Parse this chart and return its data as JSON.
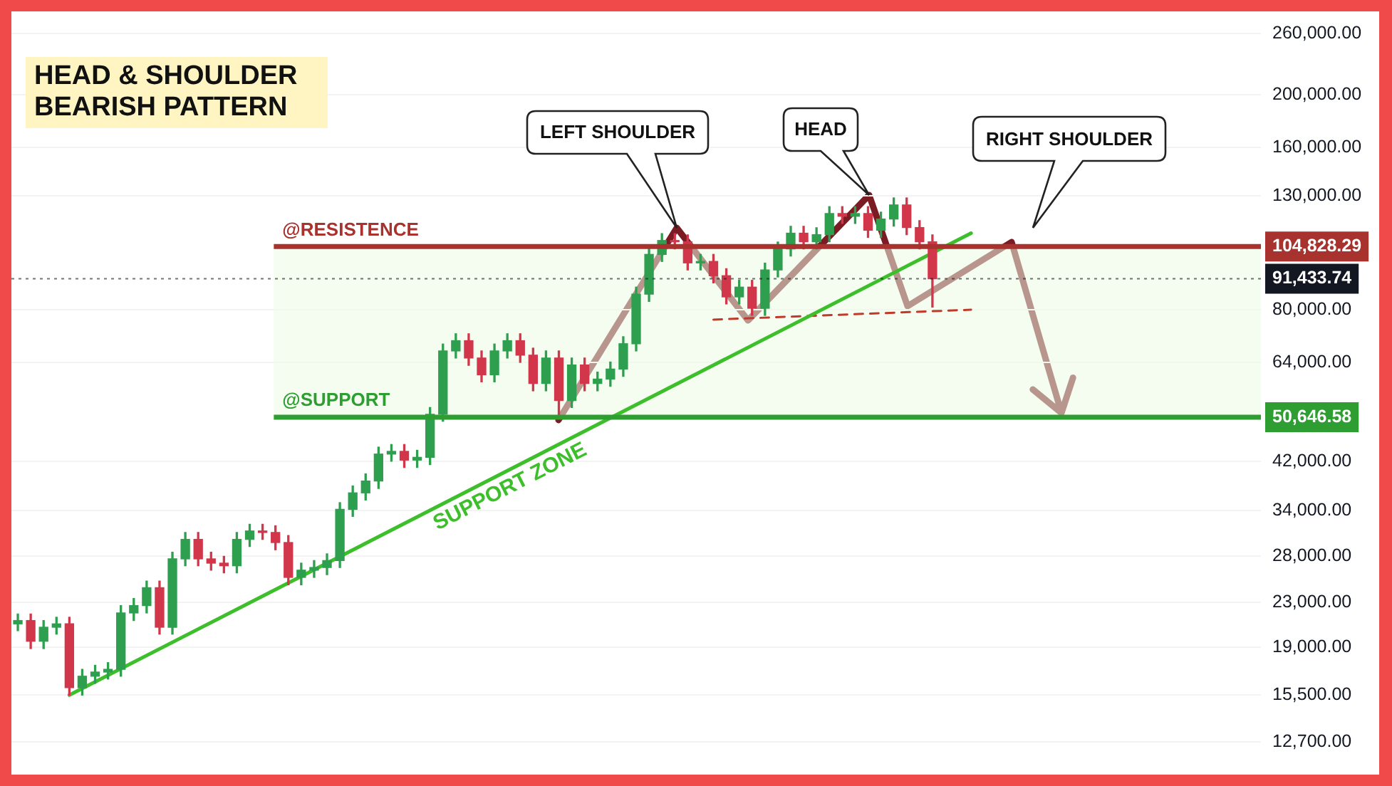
{
  "chart_data": {
    "type": "candlestick",
    "title": "HEAD & SHOULDER BEARISH PATTERN",
    "categories": [
      null,
      null,
      null,
      null,
      null,
      null,
      null,
      null,
      null,
      null,
      null,
      null,
      null,
      null,
      null,
      null,
      null,
      null,
      null,
      null,
      null,
      null,
      null,
      null,
      null,
      null,
      null,
      null,
      null,
      null,
      null,
      null,
      null,
      null,
      null,
      null,
      null,
      null,
      null,
      null,
      null,
      null,
      null,
      null,
      null,
      null,
      null,
      null,
      null,
      null,
      null,
      null,
      null,
      null,
      null,
      null,
      null,
      null,
      null,
      null,
      null,
      null,
      null,
      null,
      null,
      null,
      null,
      null,
      null,
      null,
      null,
      null,
      null,
      null,
      null,
      null,
      null,
      null,
      null,
      null,
      null,
      null,
      null,
      null,
      null,
      null,
      null,
      null,
      null,
      null,
      null,
      null,
      null,
      null,
      null,
      null,
      null
    ],
    "ohlc": [
      [
        21000,
        21900,
        20400,
        21300
      ],
      [
        21300,
        21900,
        18900,
        19500
      ],
      [
        19500,
        21300,
        18900,
        20700
      ],
      [
        20700,
        21600,
        20100,
        21000
      ],
      [
        21000,
        21600,
        15500,
        16000
      ],
      [
        16000,
        17300,
        15500,
        16800
      ],
      [
        16800,
        17600,
        16300,
        17100
      ],
      [
        17100,
        17800,
        16600,
        17300
      ],
      [
        17300,
        22700,
        16800,
        22000
      ],
      [
        22000,
        23400,
        21300,
        22700
      ],
      [
        22700,
        25200,
        22000,
        24500
      ],
      [
        24500,
        25200,
        20100,
        20700
      ],
      [
        20700,
        28500,
        20100,
        27700
      ],
      [
        27700,
        31000,
        26900,
        30100
      ],
      [
        30100,
        31000,
        26900,
        27700
      ],
      [
        27700,
        28500,
        26400,
        27200
      ],
      [
        27200,
        28000,
        26100,
        26900
      ],
      [
        26900,
        31000,
        26100,
        30100
      ],
      [
        30100,
        32100,
        29200,
        31200
      ],
      [
        31200,
        32100,
        30100,
        31000
      ],
      [
        31000,
        31900,
        28800,
        29700
      ],
      [
        29700,
        30600,
        24800,
        25600
      ],
      [
        25600,
        27200,
        24800,
        26400
      ],
      [
        26400,
        27500,
        25600,
        26700
      ],
      [
        26700,
        28300,
        25900,
        27500
      ],
      [
        27500,
        35200,
        26700,
        34200
      ],
      [
        34200,
        37800,
        33200,
        36700
      ],
      [
        36700,
        39800,
        35600,
        38600
      ],
      [
        38600,
        44600,
        37400,
        43300
      ],
      [
        43300,
        45100,
        42000,
        43800
      ],
      [
        43800,
        45100,
        40900,
        42200
      ],
      [
        42200,
        44000,
        40900,
        42700
      ],
      [
        42700,
        52800,
        41400,
        51300
      ],
      [
        51300,
        69200,
        49800,
        67200
      ],
      [
        67200,
        72300,
        65200,
        70200
      ],
      [
        70200,
        72300,
        63200,
        65200
      ],
      [
        65200,
        67200,
        58900,
        60700
      ],
      [
        60700,
        69200,
        58900,
        67200
      ],
      [
        67200,
        72300,
        65200,
        70200
      ],
      [
        70200,
        72300,
        64000,
        66000
      ],
      [
        66000,
        68000,
        56700,
        58500
      ],
      [
        58500,
        67200,
        56700,
        65200
      ],
      [
        65200,
        67200,
        50700,
        54400
      ],
      [
        54400,
        65200,
        52800,
        63300
      ],
      [
        63300,
        65200,
        56700,
        58500
      ],
      [
        58500,
        61400,
        56700,
        59600
      ],
      [
        59600,
        64100,
        57800,
        62200
      ],
      [
        62200,
        71400,
        60300,
        69300
      ],
      [
        69300,
        88200,
        67200,
        85600
      ],
      [
        85600,
        104400,
        83000,
        101400
      ],
      [
        101400,
        110800,
        98400,
        107600
      ],
      [
        107600,
        110800,
        103800,
        107000
      ],
      [
        107000,
        110200,
        94900,
        97800
      ],
      [
        97800,
        101400,
        94900,
        98400
      ],
      [
        98400,
        101400,
        89800,
        92600
      ],
      [
        92600,
        95400,
        82100,
        84600
      ],
      [
        84600,
        90800,
        82100,
        88200
      ],
      [
        88200,
        90800,
        78200,
        80600
      ],
      [
        80600,
        97700,
        78200,
        94900
      ],
      [
        94900,
        106900,
        92100,
        103800
      ],
      [
        103800,
        114300,
        100700,
        111000
      ],
      [
        111000,
        114300,
        103800,
        107000
      ],
      [
        107000,
        113600,
        103800,
        110300
      ],
      [
        110300,
        124300,
        107000,
        120700
      ],
      [
        120700,
        124300,
        115700,
        119300
      ],
      [
        119300,
        124300,
        115700,
        120700
      ],
      [
        120700,
        124300,
        109000,
        112400
      ],
      [
        112400,
        121400,
        109000,
        117900
      ],
      [
        117900,
        129000,
        114400,
        125200
      ],
      [
        125200,
        129000,
        110300,
        113700
      ],
      [
        113700,
        117100,
        103800,
        107000
      ],
      [
        107000,
        110200,
        81000,
        91400
      ],
      null,
      null,
      null,
      null,
      null,
      null,
      null,
      null,
      null,
      null,
      null,
      null,
      null,
      null,
      null,
      null,
      null,
      null,
      null,
      null,
      null,
      null,
      null,
      null,
      null
    ],
    "colors": [
      "#2e9e4f",
      "#d1364a",
      "#2e9e4f",
      "#2e9e4f",
      "#d1364a",
      "#2e9e4f",
      "#2e9e4f",
      "#2e9e4f",
      "#2e9e4f",
      "#2e9e4f",
      "#2e9e4f",
      "#d1364a",
      "#2e9e4f",
      "#2e9e4f",
      "#d1364a",
      "#d1364a",
      "#d1364a",
      "#2e9e4f",
      "#2e9e4f",
      "#d1364a",
      "#d1364a",
      "#d1364a",
      "#2e9e4f",
      "#2e9e4f",
      "#2e9e4f",
      "#2e9e4f",
      "#2e9e4f",
      "#2e9e4f",
      "#2e9e4f",
      "#2e9e4f",
      "#d1364a",
      "#2e9e4f",
      "#2e9e4f",
      "#2e9e4f",
      "#2e9e4f",
      "#d1364a",
      "#d1364a",
      "#2e9e4f",
      "#2e9e4f",
      "#d1364a",
      "#d1364a",
      "#2e9e4f",
      "#d1364a",
      "#2e9e4f",
      "#d1364a",
      "#2e9e4f",
      "#2e9e4f",
      "#2e9e4f",
      "#2e9e4f",
      "#2e9e4f",
      "#2e9e4f",
      "#d1364a",
      "#d1364a",
      "#2e9e4f",
      "#d1364a",
      "#d1364a",
      "#2e9e4f",
      "#d1364a",
      "#2e9e4f",
      "#2e9e4f",
      "#2e9e4f",
      "#d1364a",
      "#2e9e4f",
      "#2e9e4f",
      "#d1364a",
      "#2e9e4f",
      "#d1364a",
      "#2e9e4f",
      "#2e9e4f",
      "#d1364a",
      "#d1364a",
      "#d1364a",
      null,
      null,
      null,
      null,
      null,
      null,
      null,
      null,
      null,
      null,
      null,
      null,
      null,
      null,
      null,
      null,
      null,
      null,
      null,
      null,
      null,
      null,
      null,
      null,
      null
    ],
    "series": [
      {
        "type": "line",
        "color": "#3cbf2a",
        "line_style": "solid",
        "values": [
          null,
          null,
          null,
          null,
          15500,
          null,
          null,
          null,
          null,
          null,
          null,
          null,
          null,
          null,
          null,
          null,
          null,
          null,
          null,
          null,
          null,
          null,
          null,
          null,
          null,
          null,
          null,
          null,
          null,
          null,
          null,
          null,
          null,
          null,
          null,
          null,
          null,
          null,
          null,
          null,
          null,
          null,
          null,
          null,
          null,
          null,
          null,
          null,
          null,
          null,
          null,
          null,
          null,
          null,
          null,
          null,
          null,
          null,
          null,
          null,
          null,
          null,
          null,
          null,
          null,
          null,
          null,
          null,
          null,
          null,
          null,
          null,
          null,
          null,
          111000,
          null,
          null,
          null,
          null,
          null,
          null,
          null,
          null,
          null,
          null,
          null,
          null,
          null,
          null,
          null,
          null,
          null,
          null,
          null,
          null,
          null,
          null
        ]
      },
      {
        "type": "line",
        "color": "#c0392b",
        "line_style": "dashed",
        "values": [
          null,
          null,
          null,
          null,
          null,
          null,
          null,
          null,
          null,
          null,
          null,
          null,
          null,
          null,
          null,
          null,
          null,
          null,
          null,
          null,
          null,
          null,
          null,
          null,
          null,
          null,
          null,
          null,
          null,
          null,
          null,
          null,
          null,
          null,
          null,
          null,
          null,
          null,
          null,
          null,
          null,
          null,
          null,
          null,
          null,
          null,
          null,
          null,
          null,
          null,
          null,
          null,
          null,
          null,
          76800,
          null,
          null,
          null,
          null,
          null,
          null,
          null,
          null,
          null,
          null,
          null,
          null,
          null,
          null,
          null,
          null,
          null,
          null,
          null,
          80100,
          null,
          null,
          null,
          null,
          null,
          null,
          null,
          null,
          null,
          null,
          null,
          null,
          null,
          null,
          null,
          null,
          null,
          null,
          null,
          null,
          null,
          null
        ]
      }
    ],
    "log": "y",
    "ylim": [
      12700,
      260000
    ],
    "yticks": [
      {
        "value": 12700,
        "label": "12,700.00"
      },
      {
        "value": 15500,
        "label": "15,500.00"
      },
      {
        "value": 19000,
        "label": "19,000.00"
      },
      {
        "value": 23000,
        "label": "23,000.00"
      },
      {
        "value": 28000,
        "label": "28,000.00"
      },
      {
        "value": 34000,
        "label": "34,000.00"
      },
      {
        "value": 42000,
        "label": "42,000.00"
      },
      {
        "value": 50646.58,
        "label": "50,646.58"
      },
      {
        "value": 64000,
        "label": "64,000.00"
      },
      {
        "value": 80000,
        "label": "80,000.00"
      },
      {
        "value": 91433.74,
        "label": "91,433.74"
      },
      {
        "value": 104828.29,
        "label": "104,828.29"
      },
      {
        "value": 130000,
        "label": "130,000.00"
      },
      {
        "value": 160000,
        "label": "160,000.00"
      },
      {
        "value": 200000,
        "label": "200,000.00"
      },
      {
        "value": 260000,
        "label": "260,000.00"
      }
    ],
    "ref_lines": [
      {
        "axis": "y",
        "value": 104828.29,
        "label": "@RESISTENCE",
        "color": "#a8322d",
        "line_style": "solid"
      },
      {
        "axis": "y",
        "value": 91433.74,
        "color": "#131722",
        "line_style": "dotted"
      },
      {
        "axis": "y",
        "value": 50646.58,
        "label": "@SUPPORT",
        "color": "#2e9e32",
        "line_style": "solid"
      }
    ],
    "bands": [
      {
        "axis": "y",
        "from": 50646.58,
        "to": 104828.29,
        "color": "#ebfbe4"
      }
    ],
    "annotations": [
      "LEFT SHOULDER",
      "HEAD",
      "RIGHT SHOULDER",
      "SUPPORT ZONE"
    ],
    "grid": "y",
    "tick_labels": "y"
  }
}
